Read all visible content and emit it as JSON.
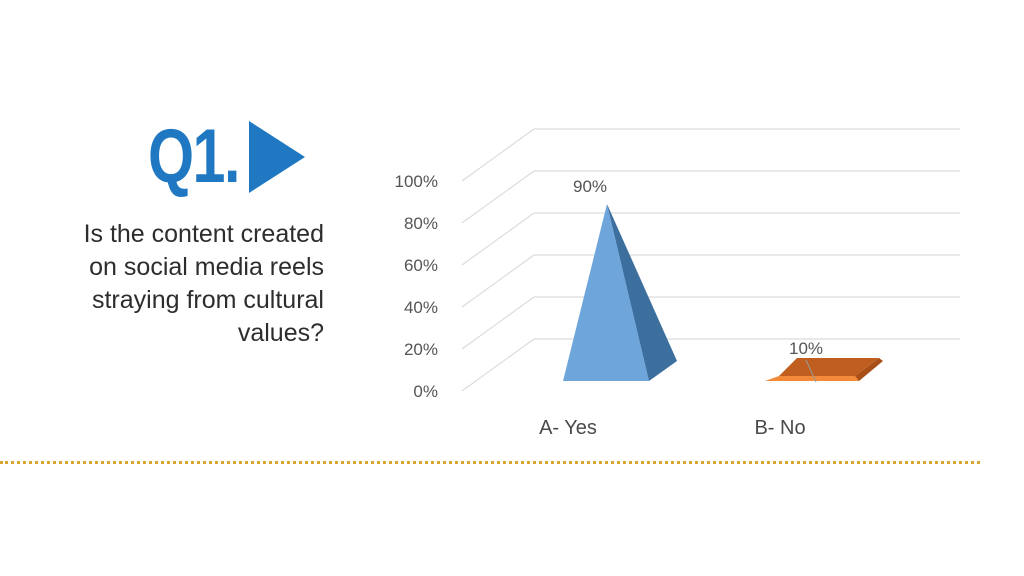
{
  "question": {
    "number": "Q1.",
    "lines": [
      "Is the content created",
      "on social media reels",
      "straying from cultural",
      "values?"
    ]
  },
  "colors": {
    "title": "#1f78c1",
    "yes_front": "#6ea6dc",
    "yes_side": "#3c6e9e",
    "no_top": "#c05e1f",
    "no_front": "#f28a3a",
    "no_side": "#a94e16",
    "divider": "#d9a531"
  },
  "icons": {
    "title_marker": "play-triangle-icon"
  },
  "chart_data": {
    "type": "bar",
    "style": "3d-pyramid",
    "categories": [
      "A- Yes",
      "B- No"
    ],
    "values": [
      90,
      10
    ],
    "data_labels": [
      "90%",
      "10%"
    ],
    "ylim": [
      0,
      100
    ],
    "yticks": [
      "0%",
      "20%",
      "40%",
      "60%",
      "80%",
      "100%"
    ],
    "grid": true,
    "legend": "none"
  }
}
